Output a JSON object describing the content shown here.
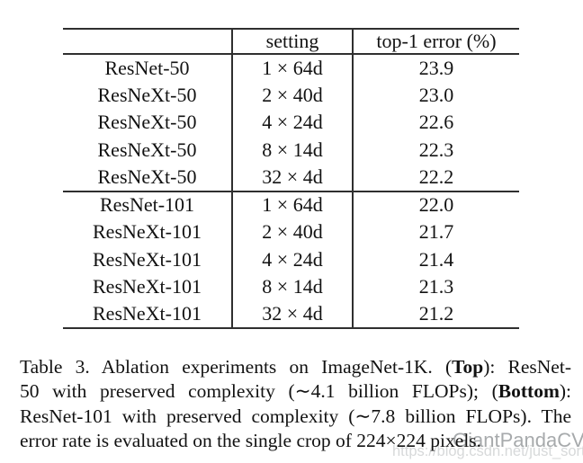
{
  "table": {
    "headers": {
      "model": "",
      "setting": "setting",
      "error": "top-1 error (%)"
    },
    "rows": [
      {
        "model": "ResNet-50",
        "setting": "1 × 64d",
        "error": "23.9",
        "bold": false,
        "group": "top"
      },
      {
        "model": "ResNeXt-50",
        "setting": "2 × 40d",
        "error": "23.0",
        "bold": false,
        "group": "top"
      },
      {
        "model": "ResNeXt-50",
        "setting": "4 × 24d",
        "error": "22.6",
        "bold": false,
        "group": "top"
      },
      {
        "model": "ResNeXt-50",
        "setting": "8 × 14d",
        "error": "22.3",
        "bold": false,
        "group": "top"
      },
      {
        "model": "ResNeXt-50",
        "setting": "32 × 4d",
        "error": "22.2",
        "bold": true,
        "group": "top"
      },
      {
        "model": "ResNet-101",
        "setting": "1 × 64d",
        "error": "22.0",
        "bold": false,
        "group": "bottom"
      },
      {
        "model": "ResNeXt-101",
        "setting": "2 × 40d",
        "error": "21.7",
        "bold": false,
        "group": "bottom"
      },
      {
        "model": "ResNeXt-101",
        "setting": "4 × 24d",
        "error": "21.4",
        "bold": false,
        "group": "bottom"
      },
      {
        "model": "ResNeXt-101",
        "setting": "8 × 14d",
        "error": "21.3",
        "bold": false,
        "group": "bottom"
      },
      {
        "model": "ResNeXt-101",
        "setting": "32 × 4d",
        "error": "21.2",
        "bold": true,
        "group": "bottom"
      }
    ]
  },
  "caption": {
    "lines": [
      {
        "justify_last": true,
        "segments": [
          {
            "text": "Table 3. Ablation experiments on ImageNet-1K. (",
            "bold": false
          },
          {
            "text": "Top",
            "bold": true
          },
          {
            "text": "): ResNet-",
            "bold": false
          }
        ]
      },
      {
        "justify_last": true,
        "segments": [
          {
            "text": "50 with preserved complexity (∼4.1 billion FLOPs); (",
            "bold": false
          },
          {
            "text": "Bottom",
            "bold": true
          },
          {
            "text": "):",
            "bold": false
          }
        ]
      },
      {
        "justify_last": true,
        "segments": [
          {
            "text": "ResNet-101 with preserved complexity (∼7.8 billion FLOPs). The",
            "bold": false
          }
        ]
      },
      {
        "justify_last": false,
        "segments": [
          {
            "text": "error rate is evaluated on the single crop of 224×224 pixels.",
            "bold": false
          }
        ]
      }
    ]
  },
  "watermarks": {
    "brand": "GiantPandaCV",
    "url": "https://blog.csdn.net/just_sort"
  },
  "colors": {
    "rule": "#2f2f2f",
    "text": "#121212",
    "brand_watermark": "#a7aaac",
    "url_watermark": "#d7d9da"
  }
}
